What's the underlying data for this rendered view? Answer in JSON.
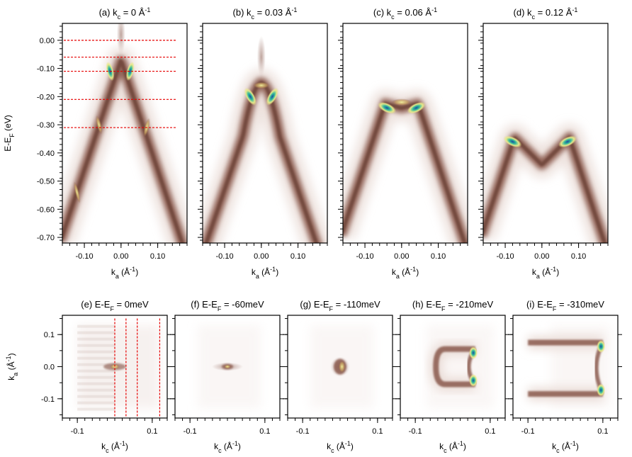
{
  "chart_data": [
    {
      "type": "heatmap",
      "panel": "a",
      "title": {
        "lead": "(a) k",
        "sub": "c",
        "mid": " = 0 Å",
        "sup": "-1"
      },
      "xlabel": {
        "main": "k",
        "sub": "a",
        "rest": " (Å",
        "sup": "-1",
        "end": ")"
      },
      "ylabel": {
        "main": "E-E",
        "sub": "F",
        "rest": " (eV)"
      },
      "xticks": [
        -0.1,
        0.0,
        0.1
      ],
      "xtick_labels": [
        "-0.10",
        "0.00",
        "0.10"
      ],
      "yticks": [
        0.0,
        -0.1,
        -0.2,
        -0.3,
        -0.4,
        -0.5,
        -0.6,
        -0.7
      ],
      "ytick_labels": [
        "0.00",
        "-0.10",
        "-0.20",
        "-0.30",
        "-0.40",
        "-0.50",
        "-0.60",
        "-0.70"
      ],
      "xlim": [
        -0.16,
        0.18
      ],
      "ylim": [
        -0.72,
        0.06
      ],
      "band_apex": {
        "k": 0.0,
        "E": -0.07
      },
      "reference_lines_E": [
        0.0,
        -0.06,
        -0.11,
        -0.21,
        -0.31
      ]
    },
    {
      "type": "heatmap",
      "panel": "b",
      "title": {
        "lead": "(b) k",
        "sub": "c",
        "mid": " = 0.03 Å",
        "sup": "-1"
      },
      "xlabel": {
        "main": "k",
        "sub": "a",
        "rest": " (Å",
        "sup": "-1",
        "end": ")"
      },
      "xticks": [
        -0.1,
        0.0,
        0.1
      ],
      "xtick_labels": [
        "-0.10",
        "0.00",
        "0.10"
      ],
      "xlim": [
        -0.16,
        0.18
      ],
      "ylim": [
        -0.72,
        0.06
      ],
      "band_apex": {
        "k": 0.0,
        "E": -0.15
      },
      "intensity_maxima": [
        {
          "k": -0.03,
          "E": -0.2
        },
        {
          "k": 0.03,
          "E": -0.2
        }
      ]
    },
    {
      "type": "heatmap",
      "panel": "c",
      "title": {
        "lead": "(c) k",
        "sub": "c",
        "mid": " = 0.06 Å",
        "sup": "-1"
      },
      "xlabel": {
        "main": "k",
        "sub": "a",
        "rest": " (Å",
        "sup": "-1",
        "end": ")"
      },
      "xticks": [
        -0.1,
        0.0,
        0.1
      ],
      "xtick_labels": [
        "-0.10",
        "0.00",
        "0.10"
      ],
      "xlim": [
        -0.16,
        0.18
      ],
      "ylim": [
        -0.72,
        0.06
      ],
      "intensity_maxima": [
        {
          "k": -0.04,
          "E": -0.24
        },
        {
          "k": 0.04,
          "E": -0.24
        }
      ]
    },
    {
      "type": "heatmap",
      "panel": "d",
      "title": {
        "lead": "(d) k",
        "sub": "c",
        "mid": " = 0.12 Å",
        "sup": "-1"
      },
      "xlabel": {
        "main": "k",
        "sub": "a",
        "rest": " (Å",
        "sup": "-1",
        "end": ")"
      },
      "xticks": [
        -0.1,
        0.0,
        0.1
      ],
      "xtick_labels": [
        "-0.10",
        "0.00",
        "0.10"
      ],
      "xlim": [
        -0.16,
        0.18
      ],
      "ylim": [
        -0.72,
        0.06
      ],
      "intensity_maxima": [
        {
          "k": -0.08,
          "E": -0.36
        },
        {
          "k": 0.07,
          "E": -0.36
        }
      ]
    },
    {
      "type": "heatmap",
      "panel": "e",
      "title": {
        "lead": "(e) E-E",
        "sub": "F",
        "mid": " = 0meV",
        "sup": ""
      },
      "xlabel": {
        "main": "k",
        "sub": "c",
        "rest": " (Å",
        "sup": "-1",
        "end": ")"
      },
      "ylabel": {
        "main": "k",
        "sub": "a",
        "rest": " (Å",
        "sup": "-1",
        "end": ")"
      },
      "xticks": [
        -0.1,
        0.1
      ],
      "xtick_labels": [
        "-0.1",
        "0.1"
      ],
      "yticks": [
        0.1,
        0.0,
        -0.1
      ],
      "ytick_labels": [
        "0.1",
        "0.0",
        "-0.1"
      ],
      "xlim": [
        -0.14,
        0.14
      ],
      "ylim": [
        -0.16,
        0.16
      ],
      "reference_lines_kc": [
        0.0,
        0.03,
        0.06,
        0.12
      ]
    },
    {
      "type": "heatmap",
      "panel": "f",
      "title": {
        "lead": "(f) E-E",
        "sub": "F",
        "mid": " = -60meV",
        "sup": ""
      },
      "xlabel": {
        "main": "k",
        "sub": "c",
        "rest": " (Å",
        "sup": "-1",
        "end": ")"
      },
      "xticks": [
        -0.1,
        0.1
      ],
      "xtick_labels": [
        "-0.1",
        "0.1"
      ],
      "xlim": [
        -0.14,
        0.14
      ],
      "ylim": [
        -0.16,
        0.16
      ]
    },
    {
      "type": "heatmap",
      "panel": "g",
      "title": {
        "lead": "(g) E-E",
        "sub": "F",
        "mid": " = -110meV",
        "sup": ""
      },
      "xlabel": {
        "main": "k",
        "sub": "c",
        "rest": " (Å",
        "sup": "-1",
        "end": ")"
      },
      "xticks": [
        -0.1,
        0.1
      ],
      "xtick_labels": [
        "-0.1",
        "0.1"
      ],
      "xlim": [
        -0.14,
        0.14
      ],
      "ylim": [
        -0.16,
        0.16
      ]
    },
    {
      "type": "heatmap",
      "panel": "h",
      "title": {
        "lead": "(h) E-E",
        "sub": "F",
        "mid": " = -210meV",
        "sup": ""
      },
      "xlabel": {
        "main": "k",
        "sub": "c",
        "rest": " (Å",
        "sup": "-1",
        "end": ")"
      },
      "xticks": [
        -0.1,
        0.1
      ],
      "xtick_labels": [
        "-0.1",
        "0.1"
      ],
      "xlim": [
        -0.14,
        0.14
      ],
      "ylim": [
        -0.16,
        0.16
      ]
    },
    {
      "type": "heatmap",
      "panel": "i",
      "title": {
        "lead": "(i) E-E",
        "sub": "F",
        "mid": " = -310meV",
        "sup": ""
      },
      "xlabel": {
        "main": "k",
        "sub": "c",
        "rest": " (Å",
        "sup": "-1",
        "end": ")"
      },
      "xticks": [
        -0.1,
        0.1
      ],
      "xtick_labels": [
        "-0.1",
        "0.1"
      ],
      "xlim": [
        -0.14,
        0.14
      ],
      "ylim": [
        -0.16,
        0.16
      ]
    }
  ],
  "colors": {
    "band_low": "#e9dbd6",
    "band_mid": "#8a5a4d",
    "band_dark": "#5a3226",
    "band_hot": "#f2ef8a",
    "band_peak": "#3bc9a0",
    "band_max": "#2456a8",
    "reference_line": "#e60000"
  }
}
